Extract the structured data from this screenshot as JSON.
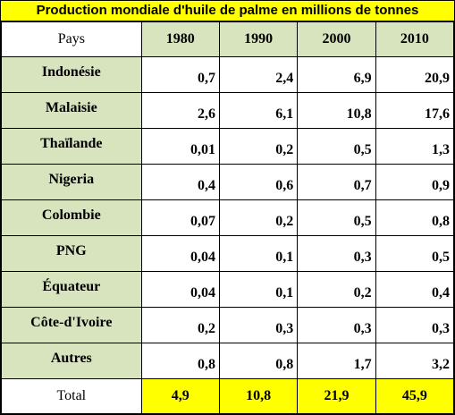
{
  "title": "Production mondiale d'huile de palme en millions de tonnes",
  "header": {
    "country_label": "Pays",
    "years": [
      "1980",
      "1990",
      "2000",
      "2010"
    ]
  },
  "rows": [
    {
      "country": "Indonésie",
      "values": [
        "0,7",
        "2,4",
        "6,9",
        "20,9"
      ]
    },
    {
      "country": "Malaisie",
      "values": [
        "2,6",
        "6,1",
        "10,8",
        "17,6"
      ]
    },
    {
      "country": "Thaïlande",
      "values": [
        "0,01",
        "0,2",
        "0,5",
        "1,3"
      ]
    },
    {
      "country": "Nigeria",
      "values": [
        "0,4",
        "0,6",
        "0,7",
        "0,9"
      ]
    },
    {
      "country": "Colombie",
      "values": [
        "0,07",
        "0,2",
        "0,5",
        "0,8"
      ]
    },
    {
      "country": "PNG",
      "values": [
        "0,04",
        "0,1",
        "0,3",
        "0,5"
      ]
    },
    {
      "country": "Équateur",
      "values": [
        "0,04",
        "0,1",
        "0,2",
        "0,4"
      ]
    },
    {
      "country": "Côte-d'Ivoire",
      "values": [
        "0,2",
        "0,3",
        "0,3",
        "0,3"
      ]
    },
    {
      "country": "Autres",
      "values": [
        "0,8",
        "0,8",
        "1,7",
        "3,2"
      ]
    }
  ],
  "total": {
    "label": "Total",
    "values": [
      "4,9",
      "10,8",
      "21,9",
      "45,9"
    ]
  },
  "colors": {
    "title_background": "#ffff00",
    "header_background": "#d7e4bd",
    "total_background": "#ffff00"
  }
}
